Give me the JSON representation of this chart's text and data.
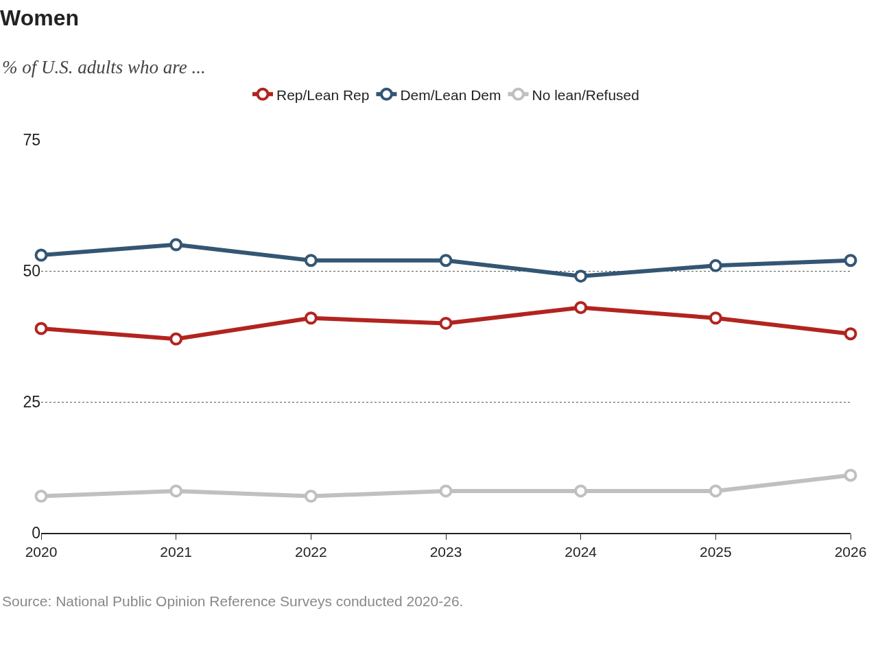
{
  "chart_data": {
    "type": "line",
    "title": "Women",
    "subtitle": "% of U.S. adults who are ...",
    "x": [
      2020,
      2021,
      2022,
      2023,
      2024,
      2025,
      2026
    ],
    "series": [
      {
        "name": "Rep/Lean Rep",
        "color": "#b2241f",
        "values": [
          39,
          37,
          41,
          40,
          43,
          41,
          38
        ]
      },
      {
        "name": "Dem/Lean Dem",
        "color": "#345674",
        "values": [
          53,
          55,
          52,
          52,
          49,
          51,
          52
        ]
      },
      {
        "name": "No lean/Refused",
        "color": "#c0c0c0",
        "values": [
          7,
          8,
          7,
          8,
          8,
          8,
          11
        ]
      }
    ],
    "xlim": [
      2020,
      2026
    ],
    "xticks": [
      2020,
      2021,
      2022,
      2023,
      2024,
      2025,
      2026
    ],
    "ylim": [
      0,
      75
    ],
    "yticks": [
      0,
      25,
      50,
      75
    ],
    "grid": "y",
    "legend": "top",
    "marker": "circle",
    "line_style": "solid",
    "annotations": [
      "Source: National Public Opinion Reference Surveys conducted 2020-26."
    ]
  }
}
